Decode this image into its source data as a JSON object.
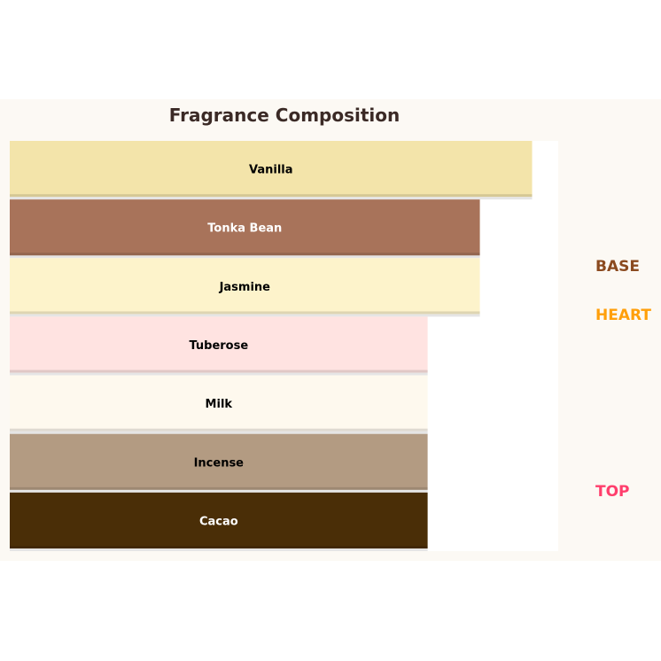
{
  "chart_data": {
    "type": "bar",
    "orientation": "horizontal",
    "title": "Fragrance Composition",
    "categories": [
      "Vanilla",
      "Tonka Bean",
      "Jasmine",
      "Tuberose",
      "Milk",
      "Incense",
      "Cacao"
    ],
    "values": [
      10,
      9,
      9,
      8,
      8,
      8,
      8
    ],
    "colors": [
      "#f3e4aa",
      "#a8735a",
      "#fdf3cb",
      "#ffe3e1",
      "#fef9ee",
      "#b39b82",
      "#4a2e07"
    ],
    "label_colors": [
      "#000000",
      "#ffffff",
      "#000000",
      "#000000",
      "#000000",
      "#000000",
      "#ffffff"
    ],
    "xlim": [
      0,
      10.5
    ],
    "grid": false,
    "tiers": [
      {
        "label": "BASE",
        "color": "#8b4a1f"
      },
      {
        "label": "HEART",
        "color": "#ff9f0a"
      },
      {
        "label": "TOP",
        "color": "#ff3e6c"
      }
    ]
  }
}
